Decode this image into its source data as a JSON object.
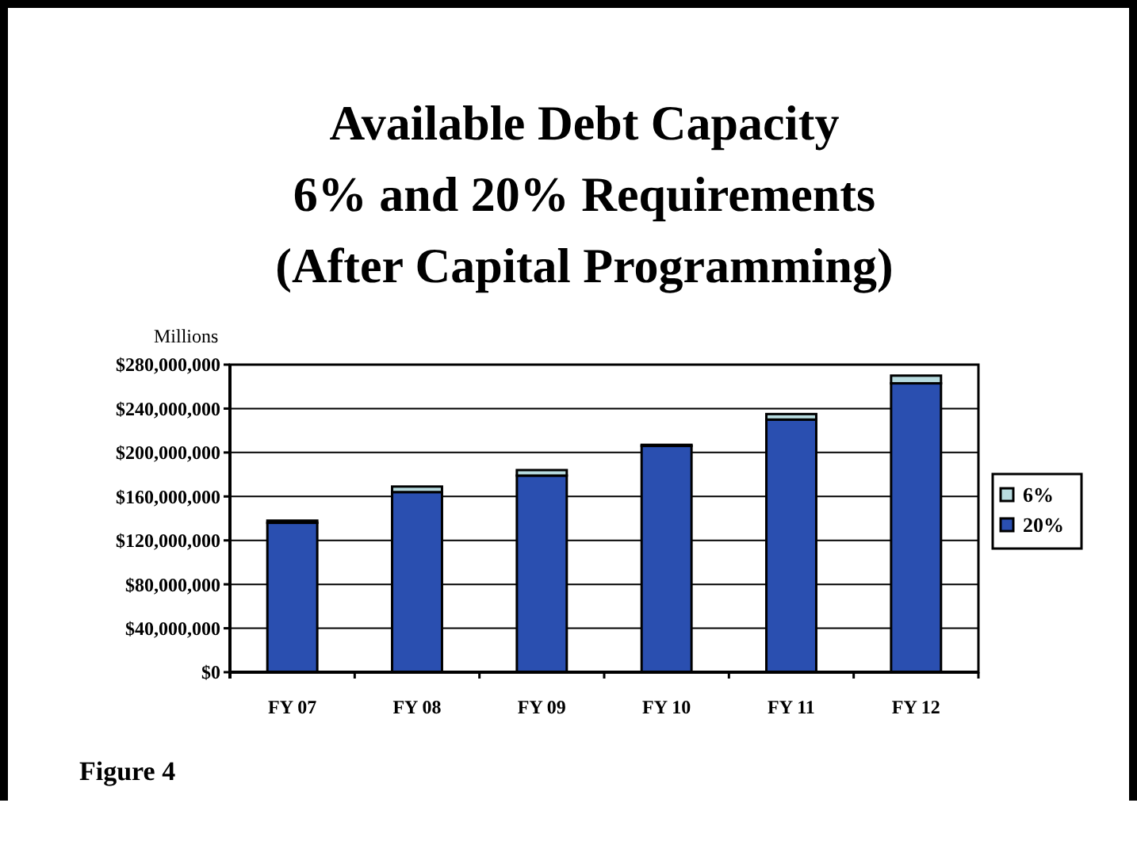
{
  "chart_data": {
    "type": "bar",
    "title": "Available Debt Capacity\n6% and 20% Requirements\n(After Capital Programming)",
    "categories": [
      "FY 07",
      "FY 08",
      "FY 09",
      "FY 10",
      "FY 11",
      "FY 12"
    ],
    "stacked": true,
    "series": [
      {
        "name": "20%",
        "color": "#2a4fb0",
        "values": [
          136000000,
          164000000,
          179000000,
          206000000,
          230000000,
          263000000
        ]
      },
      {
        "name": "6%",
        "color": "#b8dce0",
        "values": [
          2000000,
          5000000,
          5000000,
          1000000,
          5000000,
          7000000
        ]
      }
    ],
    "ylim": [
      0,
      280000000
    ],
    "yticks": [
      {
        "value": 0,
        "label": "$0"
      },
      {
        "value": 40000000,
        "label": "$40,000,000"
      },
      {
        "value": 80000000,
        "label": "$80,000,000"
      },
      {
        "value": 120000000,
        "label": "$120,000,000"
      },
      {
        "value": 160000000,
        "label": "$160,000,000"
      },
      {
        "value": 200000000,
        "label": "$200,000,000"
      },
      {
        "value": 240000000,
        "label": "$240,000,000"
      },
      {
        "value": 280000000,
        "label": "$280,000,000"
      }
    ],
    "grid": "y",
    "legend": "right",
    "annotations": [
      "Millions",
      "Figure 4"
    ]
  }
}
